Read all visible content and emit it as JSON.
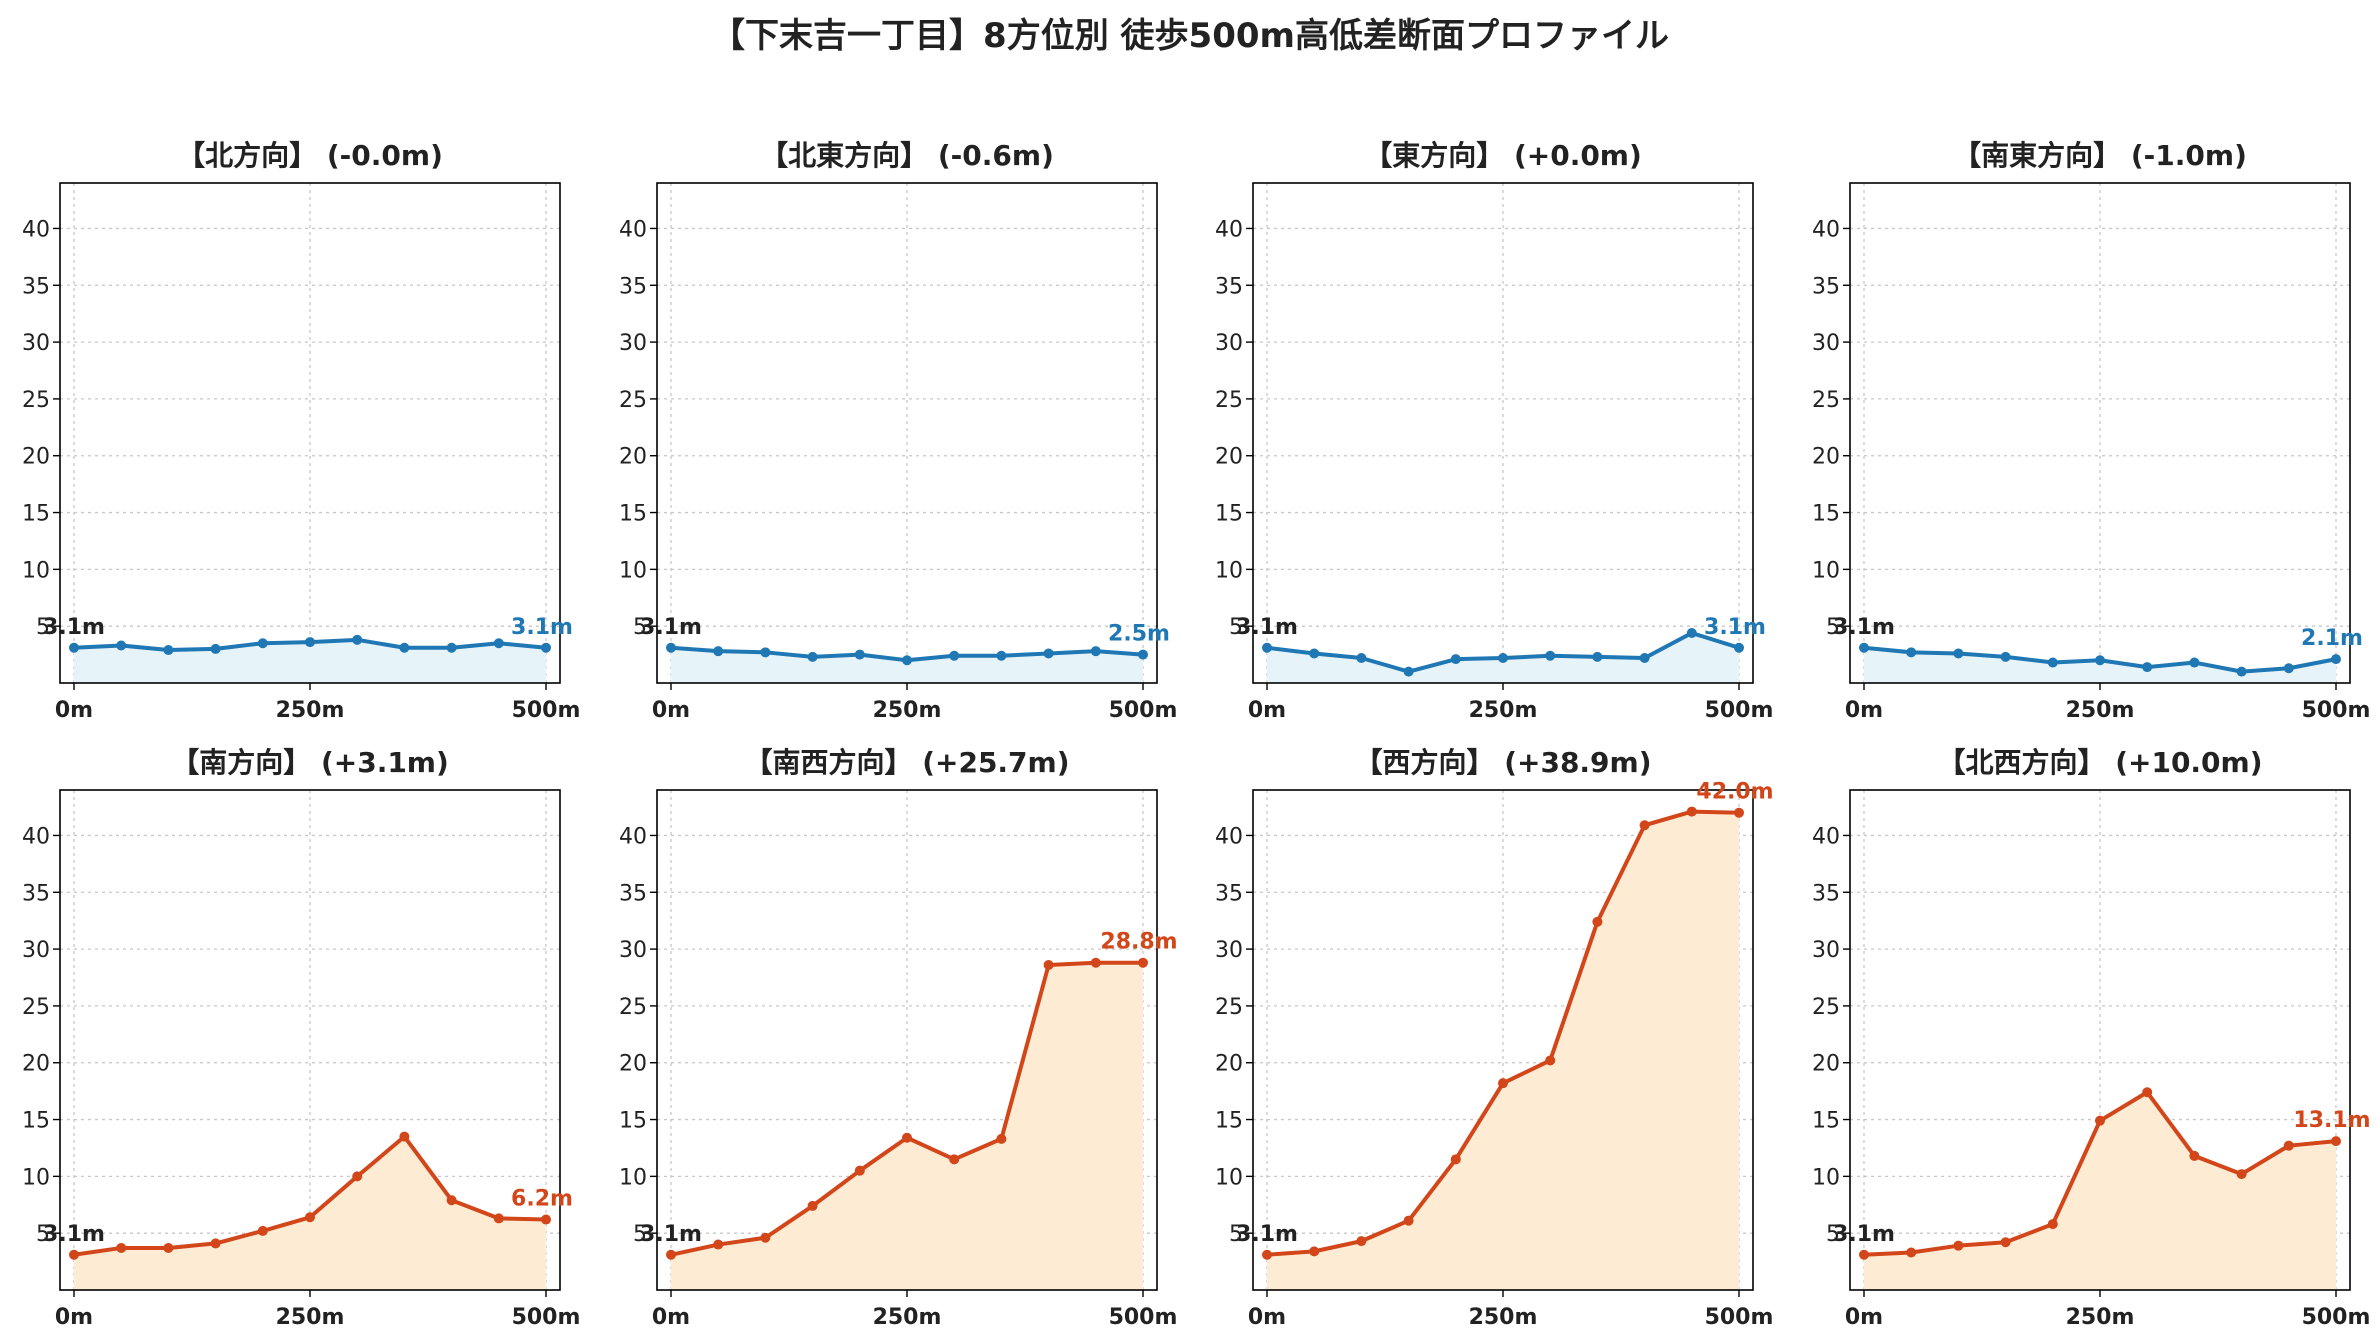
{
  "title": "【下末吉一丁目】8方位別 徒歩500m高低差断面プロファイル",
  "colors": {
    "down": "#1f77b4",
    "down_fill": "#e6f4fa",
    "up": "#d2461a",
    "up_fill": "#fdebd3",
    "grid": "#c8c8c8",
    "text": "#222222"
  },
  "chart_data": [
    {
      "type": "area",
      "title": "【北方向】 (-0.0m)",
      "x": [
        0,
        50,
        100,
        150,
        200,
        250,
        300,
        350,
        400,
        450,
        500
      ],
      "values": [
        3.1,
        3.3,
        2.9,
        3.0,
        3.5,
        3.6,
        3.8,
        3.1,
        3.1,
        3.5,
        3.1
      ],
      "start_label": "3.1m",
      "end_label": "3.1m",
      "trend": "down",
      "x_ticks": [
        "0m",
        "250m",
        "500m"
      ],
      "y_ticks": [
        "5",
        "10",
        "15",
        "20",
        "25",
        "30",
        "35",
        "40"
      ],
      "ylim": [
        0,
        44
      ],
      "grid": true
    },
    {
      "type": "area",
      "title": "【北東方向】 (-0.6m)",
      "x": [
        0,
        50,
        100,
        150,
        200,
        250,
        300,
        350,
        400,
        450,
        500
      ],
      "values": [
        3.1,
        2.8,
        2.7,
        2.3,
        2.5,
        2.0,
        2.4,
        2.4,
        2.6,
        2.8,
        2.5
      ],
      "start_label": "3.1m",
      "end_label": "2.5m",
      "trend": "down",
      "x_ticks": [
        "0m",
        "250m",
        "500m"
      ],
      "y_ticks": [
        "5",
        "10",
        "15",
        "20",
        "25",
        "30",
        "35",
        "40"
      ],
      "ylim": [
        0,
        44
      ],
      "grid": true
    },
    {
      "type": "area",
      "title": "【東方向】 (+0.0m)",
      "x": [
        0,
        50,
        100,
        150,
        200,
        250,
        300,
        350,
        400,
        450,
        500
      ],
      "values": [
        3.1,
        2.6,
        2.2,
        1.0,
        2.1,
        2.2,
        2.4,
        2.3,
        2.2,
        4.4,
        3.1
      ],
      "start_label": "3.1m",
      "end_label": "3.1m",
      "trend": "down",
      "x_ticks": [
        "0m",
        "250m",
        "500m"
      ],
      "y_ticks": [
        "5",
        "10",
        "15",
        "20",
        "25",
        "30",
        "35",
        "40"
      ],
      "ylim": [
        0,
        44
      ],
      "grid": true
    },
    {
      "type": "area",
      "title": "【南東方向】 (-1.0m)",
      "x": [
        0,
        50,
        100,
        150,
        200,
        250,
        300,
        350,
        400,
        450,
        500
      ],
      "values": [
        3.1,
        2.7,
        2.6,
        2.3,
        1.8,
        2.0,
        1.4,
        1.8,
        1.0,
        1.3,
        2.1
      ],
      "start_label": "3.1m",
      "end_label": "2.1m",
      "trend": "down",
      "x_ticks": [
        "0m",
        "250m",
        "500m"
      ],
      "y_ticks": [
        "5",
        "10",
        "15",
        "20",
        "25",
        "30",
        "35",
        "40"
      ],
      "ylim": [
        0,
        44
      ],
      "grid": true
    },
    {
      "type": "area",
      "title": "【南方向】 (+3.1m)",
      "x": [
        0,
        50,
        100,
        150,
        200,
        250,
        300,
        350,
        400,
        450,
        500
      ],
      "values": [
        3.1,
        3.7,
        3.7,
        4.1,
        5.2,
        6.4,
        10.0,
        13.5,
        7.9,
        6.3,
        6.2
      ],
      "start_label": "3.1m",
      "end_label": "6.2m",
      "trend": "up",
      "x_ticks": [
        "0m",
        "250m",
        "500m"
      ],
      "y_ticks": [
        "5",
        "10",
        "15",
        "20",
        "25",
        "30",
        "35",
        "40"
      ],
      "ylim": [
        0,
        44
      ],
      "grid": true
    },
    {
      "type": "area",
      "title": "【南西方向】 (+25.7m)",
      "x": [
        0,
        50,
        100,
        150,
        200,
        250,
        300,
        350,
        400,
        450,
        500
      ],
      "values": [
        3.1,
        4.0,
        4.6,
        7.4,
        10.5,
        13.4,
        11.5,
        13.3,
        28.6,
        28.8,
        28.8
      ],
      "start_label": "3.1m",
      "end_label": "28.8m",
      "trend": "up",
      "x_ticks": [
        "0m",
        "250m",
        "500m"
      ],
      "y_ticks": [
        "5",
        "10",
        "15",
        "20",
        "25",
        "30",
        "35",
        "40"
      ],
      "ylim": [
        0,
        44
      ],
      "grid": true
    },
    {
      "type": "area",
      "title": "【西方向】 (+38.9m)",
      "x": [
        0,
        50,
        100,
        150,
        200,
        250,
        300,
        350,
        400,
        450,
        500
      ],
      "values": [
        3.1,
        3.4,
        4.3,
        6.1,
        11.5,
        18.2,
        20.2,
        32.4,
        40.9,
        42.1,
        42.0
      ],
      "start_label": "3.1m",
      "end_label": "42.0m",
      "trend": "up",
      "x_ticks": [
        "0m",
        "250m",
        "500m"
      ],
      "y_ticks": [
        "5",
        "10",
        "15",
        "20",
        "25",
        "30",
        "35",
        "40"
      ],
      "ylim": [
        0,
        44
      ],
      "grid": true
    },
    {
      "type": "area",
      "title": "【北西方向】 (+10.0m)",
      "x": [
        0,
        50,
        100,
        150,
        200,
        250,
        300,
        350,
        400,
        450,
        500
      ],
      "values": [
        3.1,
        3.3,
        3.9,
        4.2,
        5.8,
        14.9,
        17.4,
        11.8,
        10.2,
        12.7,
        13.1
      ],
      "start_label": "3.1m",
      "end_label": "13.1m",
      "trend": "up",
      "x_ticks": [
        "0m",
        "250m",
        "500m"
      ],
      "y_ticks": [
        "5",
        "10",
        "15",
        "20",
        "25",
        "30",
        "35",
        "40"
      ],
      "ylim": [
        0,
        44
      ],
      "grid": true
    }
  ]
}
